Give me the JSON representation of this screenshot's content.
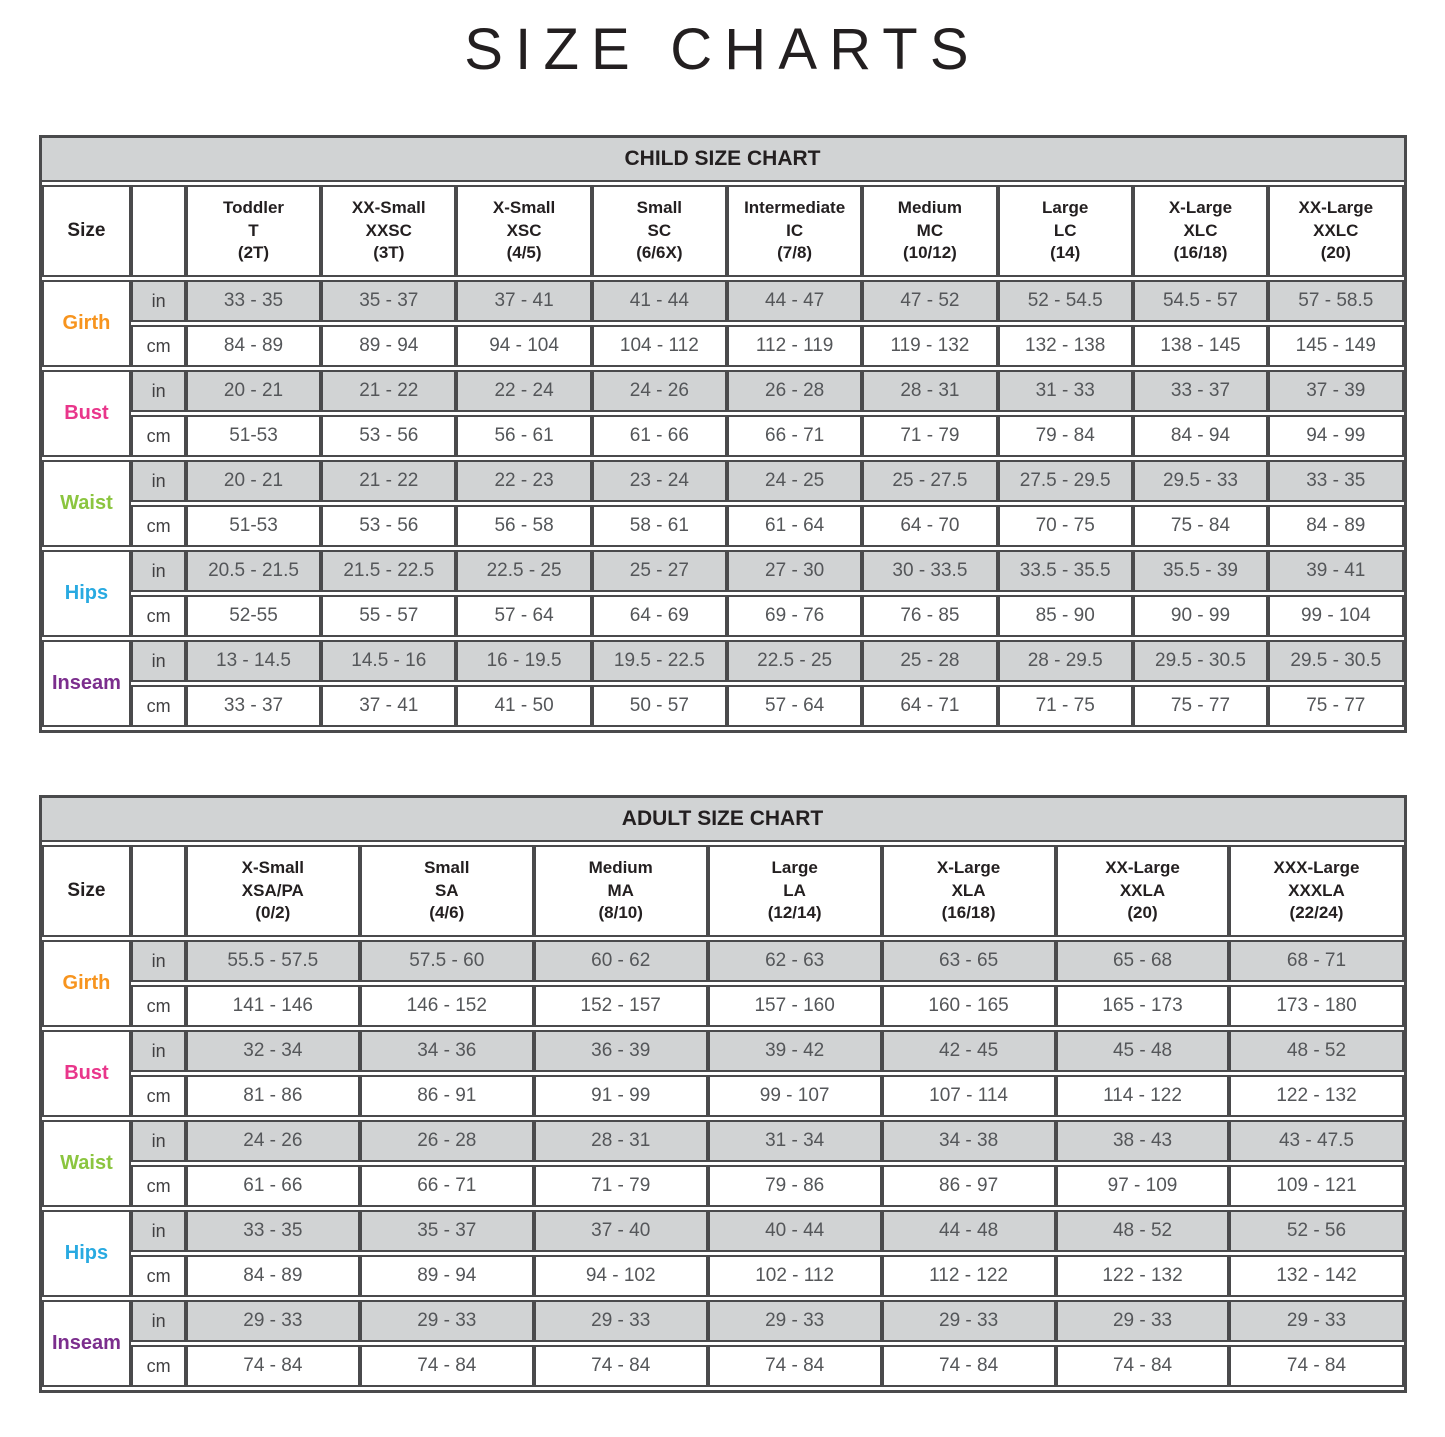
{
  "page_title": "SIZE CHARTS",
  "units": [
    "in",
    "cm"
  ],
  "colors": {
    "girth": "#F7941E",
    "bust": "#E9368B",
    "waist": "#8BC53F",
    "hips": "#29AAE1",
    "inseam": "#7B2E8D",
    "row_shade": "#D1D3D4",
    "border": "#4A4A4C"
  },
  "child_chart": {
    "title": "CHILD SIZE CHART",
    "size_header": "Size",
    "columns": [
      {
        "name": "Toddler",
        "code": "T",
        "range": "(2T)"
      },
      {
        "name": "XX-Small",
        "code": "XXSC",
        "range": "(3T)"
      },
      {
        "name": "X-Small",
        "code": "XSC",
        "range": "(4/5)"
      },
      {
        "name": "Small",
        "code": "SC",
        "range": "(6/6X)"
      },
      {
        "name": "Intermediate",
        "code": "IC",
        "range": "(7/8)"
      },
      {
        "name": "Medium",
        "code": "MC",
        "range": "(10/12)"
      },
      {
        "name": "Large",
        "code": "LC",
        "range": "(14)"
      },
      {
        "name": "X-Large",
        "code": "XLC",
        "range": "(16/18)"
      },
      {
        "name": "XX-Large",
        "code": "XXLC",
        "range": "(20)"
      }
    ],
    "rows": [
      {
        "label": "Girth",
        "color": "#F7941E",
        "in": [
          "33 - 35",
          "35 - 37",
          "37 - 41",
          "41 - 44",
          "44 - 47",
          "47 - 52",
          "52 - 54.5",
          "54.5 - 57",
          "57 - 58.5"
        ],
        "cm": [
          "84 - 89",
          "89 - 94",
          "94 - 104",
          "104 - 112",
          "112 - 119",
          "119 - 132",
          "132 - 138",
          "138 - 145",
          "145 - 149"
        ]
      },
      {
        "label": "Bust",
        "color": "#E9368B",
        "in": [
          "20 - 21",
          "21 - 22",
          "22 - 24",
          "24 - 26",
          "26 - 28",
          "28 - 31",
          "31 - 33",
          "33 - 37",
          "37 - 39"
        ],
        "cm": [
          "51-53",
          "53 - 56",
          "56 - 61",
          "61 - 66",
          "66 - 71",
          "71 - 79",
          "79 - 84",
          "84 - 94",
          "94 - 99"
        ]
      },
      {
        "label": "Waist",
        "color": "#8BC53F",
        "in": [
          "20 - 21",
          "21 - 22",
          "22 - 23",
          "23 - 24",
          "24 - 25",
          "25 - 27.5",
          "27.5 - 29.5",
          "29.5 - 33",
          "33 - 35"
        ],
        "cm": [
          "51-53",
          "53 - 56",
          "56 - 58",
          "58 - 61",
          "61 - 64",
          "64 - 70",
          "70 - 75",
          "75 - 84",
          "84 - 89"
        ]
      },
      {
        "label": "Hips",
        "color": "#29AAE1",
        "in": [
          "20.5 - 21.5",
          "21.5 - 22.5",
          "22.5 - 25",
          "25 - 27",
          "27 - 30",
          "30 - 33.5",
          "33.5 - 35.5",
          "35.5 - 39",
          "39 - 41"
        ],
        "cm": [
          "52-55",
          "55 - 57",
          "57 - 64",
          "64 - 69",
          "69 - 76",
          "76 - 85",
          "85 - 90",
          "90 - 99",
          "99 - 104"
        ]
      },
      {
        "label": "Inseam",
        "color": "#7B2E8D",
        "in": [
          "13 - 14.5",
          "14.5 - 16",
          "16 - 19.5",
          "19.5 - 22.5",
          "22.5 - 25",
          "25 - 28",
          "28 - 29.5",
          "29.5 - 30.5",
          "29.5 - 30.5"
        ],
        "cm": [
          "33 - 37",
          "37 - 41",
          "41 - 50",
          "50 - 57",
          "57 - 64",
          "64 - 71",
          "71 - 75",
          "75 - 77",
          "75 - 77"
        ]
      }
    ]
  },
  "adult_chart": {
    "title": "ADULT SIZE CHART",
    "size_header": "Size",
    "columns": [
      {
        "name": "X-Small",
        "code": "XSA/PA",
        "range": "(0/2)"
      },
      {
        "name": "Small",
        "code": "SA",
        "range": "(4/6)"
      },
      {
        "name": "Medium",
        "code": "MA",
        "range": "(8/10)"
      },
      {
        "name": "Large",
        "code": "LA",
        "range": "(12/14)"
      },
      {
        "name": "X-Large",
        "code": "XLA",
        "range": "(16/18)"
      },
      {
        "name": "XX-Large",
        "code": "XXLA",
        "range": "(20)"
      },
      {
        "name": "XXX-Large",
        "code": "XXXLA",
        "range": "(22/24)"
      }
    ],
    "rows": [
      {
        "label": "Girth",
        "color": "#F7941E",
        "in": [
          "55.5 - 57.5",
          "57.5 - 60",
          "60 - 62",
          "62 - 63",
          "63 - 65",
          "65 - 68",
          "68 - 71"
        ],
        "cm": [
          "141 - 146",
          "146 - 152",
          "152 - 157",
          "157 - 160",
          "160 - 165",
          "165 - 173",
          "173 - 180"
        ]
      },
      {
        "label": "Bust",
        "color": "#E9368B",
        "in": [
          "32 - 34",
          "34 - 36",
          "36 - 39",
          "39 - 42",
          "42 - 45",
          "45 - 48",
          "48 - 52"
        ],
        "cm": [
          "81 - 86",
          "86 - 91",
          "91 - 99",
          "99 - 107",
          "107 - 114",
          "114 - 122",
          "122 - 132"
        ]
      },
      {
        "label": "Waist",
        "color": "#8BC53F",
        "in": [
          "24 - 26",
          "26 - 28",
          "28 - 31",
          "31 - 34",
          "34 - 38",
          "38 - 43",
          "43 - 47.5"
        ],
        "cm": [
          "61 - 66",
          "66 - 71",
          "71 - 79",
          "79 - 86",
          "86 - 97",
          "97 - 109",
          "109 - 121"
        ]
      },
      {
        "label": "Hips",
        "color": "#29AAE1",
        "in": [
          "33 - 35",
          "35 - 37",
          "37 - 40",
          "40 - 44",
          "44 - 48",
          "48 - 52",
          "52 - 56"
        ],
        "cm": [
          "84 - 89",
          "89 - 94",
          "94 - 102",
          "102 - 112",
          "112 - 122",
          "122 - 132",
          "132 - 142"
        ]
      },
      {
        "label": "Inseam",
        "color": "#7B2E8D",
        "in": [
          "29 - 33",
          "29 - 33",
          "29 - 33",
          "29 - 33",
          "29 - 33",
          "29 - 33",
          "29 - 33"
        ],
        "cm": [
          "74 - 84",
          "74 - 84",
          "74 - 84",
          "74 - 84",
          "74 - 84",
          "74 - 84",
          "74 - 84"
        ]
      }
    ]
  }
}
